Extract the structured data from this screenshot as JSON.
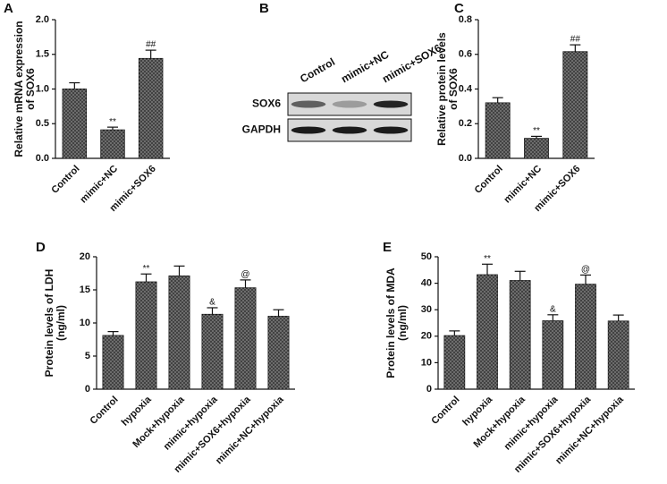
{
  "chart_data": [
    {
      "type": "bar",
      "panel": "A",
      "ylabel": [
        "Relative mRNA expression",
        "of SOX6"
      ],
      "categories": [
        "Control",
        "mimic+NC",
        "mimic+SOX6"
      ],
      "values": [
        1.0,
        0.41,
        1.44
      ],
      "errors": [
        0.09,
        0.04,
        0.12
      ],
      "annotations": [
        null,
        "**",
        "##"
      ],
      "color": "#3c3c3c",
      "ylim": [
        0,
        2.0
      ],
      "yticks": [
        {
          "value": 0,
          "label": "0.0"
        },
        {
          "value": 0.5,
          "label": "0.5"
        },
        {
          "value": 1.0,
          "label": "1.0"
        },
        {
          "value": 1.5,
          "label": "1.5"
        },
        {
          "value": 2.0,
          "label": "2.0"
        }
      ]
    },
    {
      "type": "blot",
      "panel": "B",
      "categories": [
        "Control",
        "mimic+NC",
        "mimic+SOX6"
      ],
      "rows": [
        "SOX6",
        "GAPDH"
      ]
    },
    {
      "type": "bar",
      "panel": "C",
      "ylabel": [
        "Relative protein levels",
        "of SOX6"
      ],
      "categories": [
        "Control",
        "mimic+NC",
        "mimic+SOX6"
      ],
      "values": [
        0.32,
        0.115,
        0.615
      ],
      "errors": [
        0.03,
        0.012,
        0.04
      ],
      "annotations": [
        null,
        "**",
        "##"
      ],
      "color": "#3c3c3c",
      "ylim": [
        0,
        0.8
      ],
      "yticks": [
        {
          "value": 0,
          "label": "0.0"
        },
        {
          "value": 0.2,
          "label": "0.2"
        },
        {
          "value": 0.4,
          "label": "0.4"
        },
        {
          "value": 0.6,
          "label": "0.6"
        },
        {
          "value": 0.8,
          "label": "0.8"
        }
      ]
    },
    {
      "type": "bar",
      "panel": "D",
      "ylabel": [
        "Protein levels of LDH",
        "(ng/ml)"
      ],
      "categories": [
        "Control",
        "hypoxia",
        "Mock+hypoxia",
        "mimic+hypoxia",
        "mimic+SOX6+hypoxia",
        "mimic+NC+hypoxia"
      ],
      "values": [
        8.1,
        16.2,
        17.1,
        11.3,
        15.3,
        11.0
      ],
      "errors": [
        0.6,
        1.2,
        1.5,
        1.0,
        1.2,
        1.0
      ],
      "annotations": [
        null,
        "**",
        null,
        "&",
        "@",
        null
      ],
      "color": "#3c3c3c",
      "ylim": [
        0,
        20
      ],
      "yticks": [
        0,
        5,
        10,
        15,
        20
      ]
    },
    {
      "type": "bar",
      "panel": "E",
      "ylabel": [
        "Protein levels of MDA",
        "(ng/ml)"
      ],
      "categories": [
        "Control",
        "hypoxia",
        "Mock+hypoxia",
        "mimic+hypoxia",
        "mimic+SOX6+hypoxia",
        "mimic+NC+hypoxia"
      ],
      "values": [
        20.2,
        43.2,
        41.0,
        25.8,
        39.6,
        25.7
      ],
      "errors": [
        1.8,
        4.0,
        3.5,
        2.3,
        3.5,
        2.3
      ],
      "annotations": [
        null,
        "**",
        null,
        "&",
        "@",
        null
      ],
      "color": "#3c3c3c",
      "ylim": [
        0,
        50
      ],
      "yticks": [
        0,
        10,
        20,
        30,
        40,
        50
      ]
    }
  ]
}
